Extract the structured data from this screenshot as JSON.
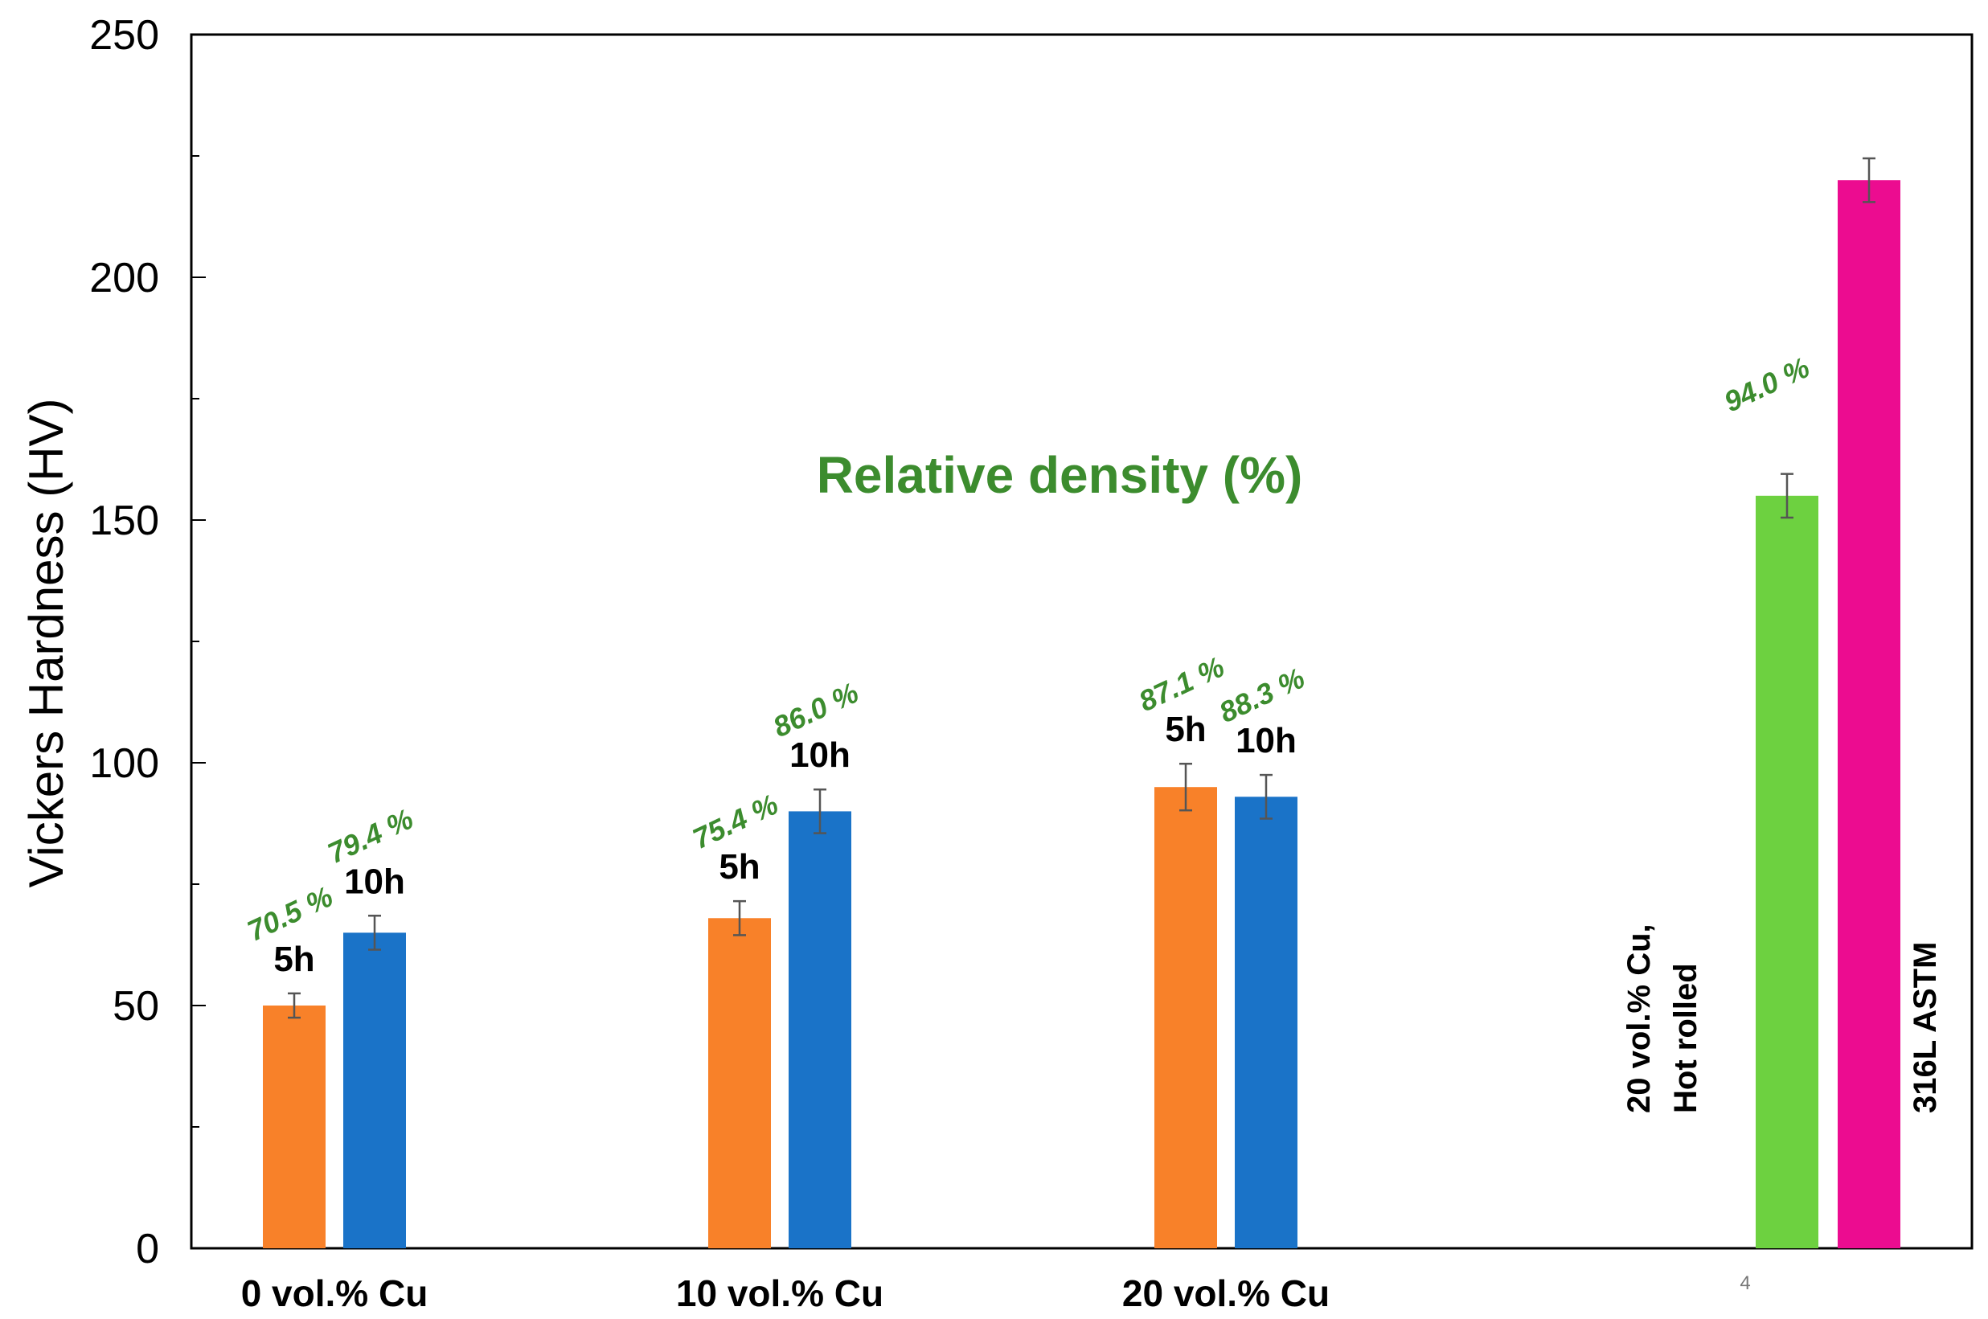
{
  "chart_data": {
    "type": "bar",
    "title": "Relative density (%)",
    "ylabel": "Vickers Hardness (HV)",
    "xlabel": "",
    "ylim": [
      0,
      250
    ],
    "yticks": [
      0,
      50,
      100,
      150,
      200,
      250
    ],
    "grid": false,
    "categories": [
      "0 vol.% Cu",
      "10 vol.% Cu",
      "20 vol.% Cu"
    ],
    "series": [
      {
        "name": "5h",
        "color": "#f88129",
        "values": [
          50,
          68,
          95
        ],
        "errors": [
          2.5,
          3.5,
          4.8
        ],
        "density": [
          "70.5 %",
          "75.4 %",
          "87.1 %"
        ]
      },
      {
        "name": "10h",
        "color": "#1a73c8",
        "values": [
          65,
          90,
          93
        ],
        "errors": [
          3.5,
          4.5,
          4.5
        ],
        "density": [
          "79.4 %",
          "86.0 %",
          "88.3 %"
        ]
      }
    ],
    "extra_bars": [
      {
        "label_lines": [
          "20 vol.% Cu,",
          "Hot rolled"
        ],
        "color": "#6dd140",
        "value": 155,
        "error": 4.5,
        "density": "94.0 %"
      },
      {
        "label_lines": [
          "316L ASTM"
        ],
        "color": "#ec0c90",
        "value": 220,
        "error": 4.5,
        "density": ""
      }
    ],
    "annotation": "4"
  }
}
